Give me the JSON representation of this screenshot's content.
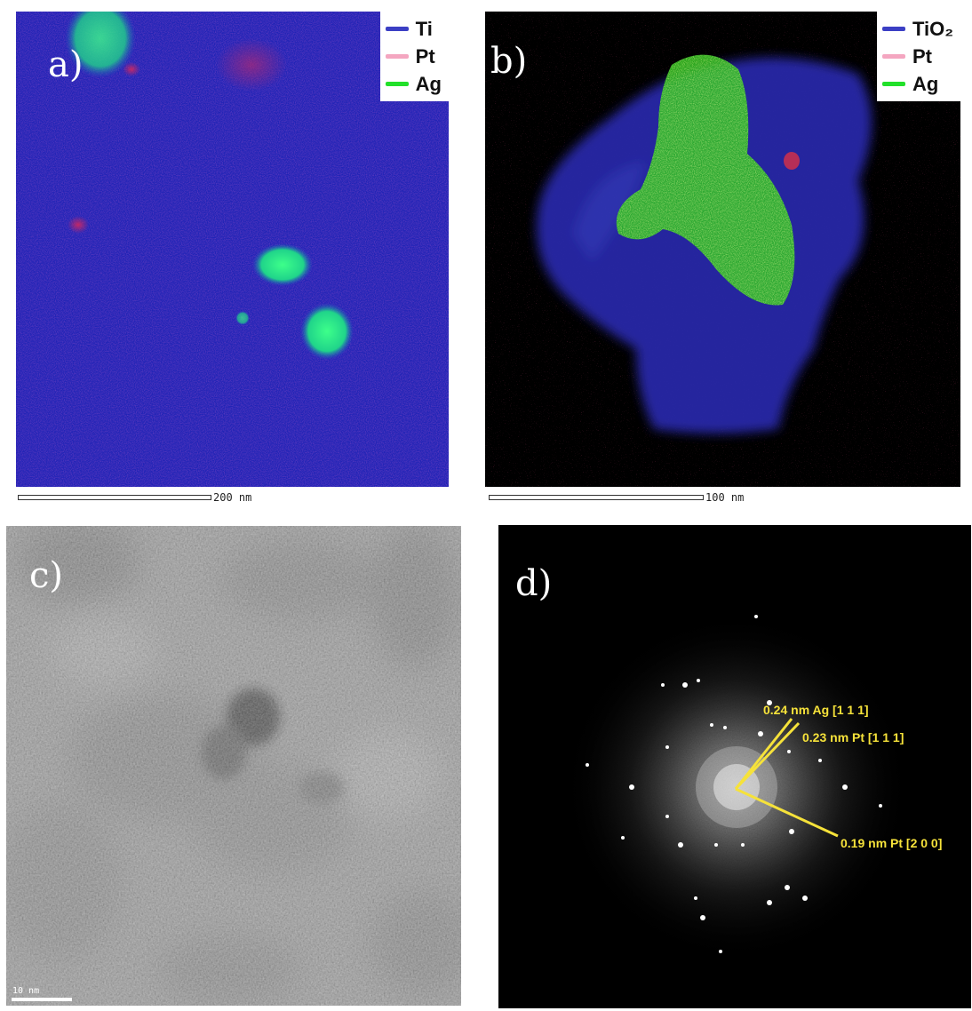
{
  "panels": {
    "a": {
      "label": "a)",
      "legend": [
        {
          "label": "Ti",
          "color": "#3b3fc4"
        },
        {
          "label": "Pt",
          "color": "#f4a6c0"
        },
        {
          "label": "Ag",
          "color": "#22e02a"
        }
      ],
      "scalebar": "200 nm"
    },
    "b": {
      "label": "b)",
      "legend": [
        {
          "label": "TiO₂",
          "color": "#3b3fc4"
        },
        {
          "label": "Pt",
          "color": "#f4a6c0"
        },
        {
          "label": "Ag",
          "color": "#22e02a"
        }
      ],
      "scalebar": "100 nm"
    },
    "c": {
      "label": "c)",
      "scalebar": "10 nm"
    },
    "d": {
      "label": "d)",
      "annotations": [
        {
          "text": "0.24 nm Ag [1 1 1]"
        },
        {
          "text": "0.23 nm Pt [1 1 1]"
        },
        {
          "text": "0.19 nm Pt [2 0 0]"
        }
      ],
      "annotation_color": "#f6e23a"
    }
  }
}
